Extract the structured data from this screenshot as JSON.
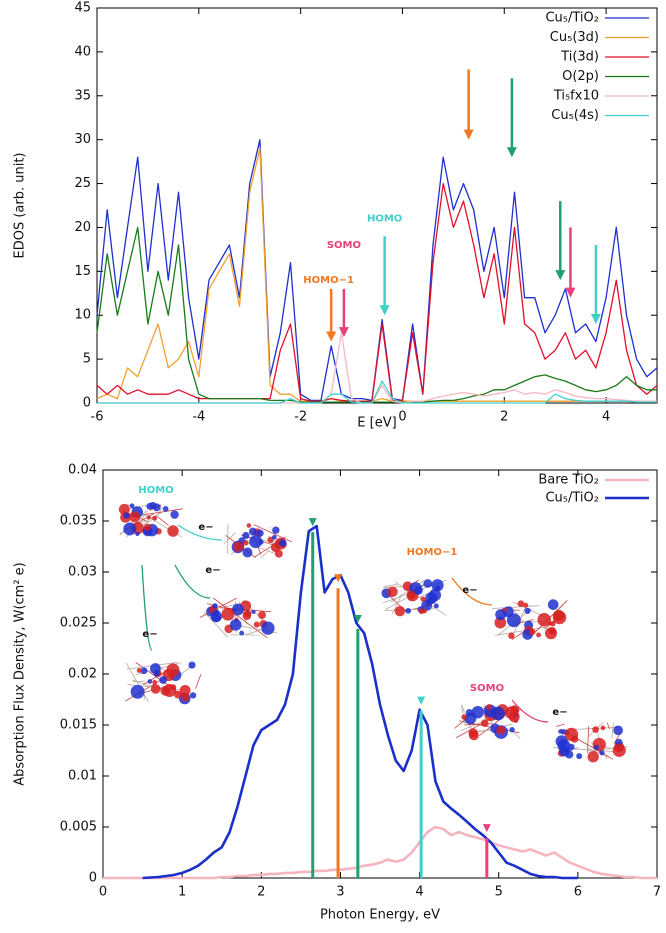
{
  "chart_data": [
    {
      "type": "line",
      "xlabel": "E [eV]",
      "ylabel": "EDOS (arb. unit)",
      "xlim": [
        -6,
        5
      ],
      "xticks": [
        -6,
        -4,
        -2,
        0,
        2,
        4
      ],
      "ylim": [
        0,
        45
      ],
      "yticks": [
        0,
        5,
        10,
        15,
        20,
        25,
        30,
        35,
        40,
        45
      ],
      "legend": "upper right",
      "x": [
        -6,
        -5.8,
        -5.6,
        -5.4,
        -5.2,
        -5,
        -4.8,
        -4.6,
        -4.4,
        -4.2,
        -4,
        -3.8,
        -3.6,
        -3.4,
        -3.2,
        -3,
        -2.8,
        -2.6,
        -2.4,
        -2.2,
        -2,
        -1.8,
        -1.6,
        -1.4,
        -1.2,
        -1,
        -0.8,
        -0.6,
        -0.4,
        -0.2,
        0,
        0.2,
        0.4,
        0.6,
        0.8,
        1,
        1.2,
        1.4,
        1.6,
        1.8,
        2,
        2.2,
        2.4,
        2.6,
        2.8,
        3,
        3.2,
        3.4,
        3.6,
        3.8,
        4,
        4.2,
        4.4,
        4.6,
        4.8,
        5
      ],
      "series": [
        {
          "name": "Cu₅/TiO₂",
          "color": "#1f2fd0",
          "values": [
            10,
            22,
            12,
            20,
            28,
            15,
            25,
            14,
            24,
            12,
            5,
            14,
            16,
            18,
            12,
            25,
            30,
            3,
            8,
            16,
            1,
            0.3,
            0.3,
            6.5,
            1,
            0.5,
            0.5,
            0.3,
            9.5,
            0.5,
            0.3,
            9,
            1,
            18,
            28,
            22,
            25,
            22,
            15,
            20,
            12,
            24,
            12,
            12,
            8,
            10,
            13,
            8,
            9,
            7,
            12,
            20,
            10,
            5,
            3,
            4
          ]
        },
        {
          "name": "Cu₅(3d)",
          "color": "#f0a030",
          "values": [
            0.5,
            1,
            0.5,
            4,
            3,
            6,
            9,
            4,
            5,
            7,
            3,
            13,
            15,
            17,
            11,
            24,
            29,
            2,
            1,
            1,
            0.2,
            0.2,
            0.2,
            0.5,
            0.2,
            0.2,
            0.2,
            0.2,
            0.5,
            0.2,
            0.2,
            0.2,
            0.2,
            0.2,
            0.2,
            0.2,
            0.2,
            0.2,
            0.2,
            0.2,
            0.2,
            0.2,
            0.2,
            0.2,
            0.2,
            0.2,
            0.2,
            0.2,
            0.2,
            0.2,
            0.2,
            0.2,
            0.2,
            0.2,
            0.2,
            0.2
          ]
        },
        {
          "name": "Ti(3d)",
          "color": "#e0102a",
          "values": [
            2,
            1,
            2,
            1,
            1.5,
            1,
            1,
            1,
            1.5,
            1,
            0.5,
            0.5,
            0.5,
            0.5,
            0.5,
            0.5,
            0.5,
            0.5,
            6,
            9,
            0.5,
            0.2,
            0.2,
            0.5,
            0.3,
            0.2,
            0.2,
            0.2,
            9,
            0.3,
            0.3,
            8,
            1,
            16,
            25,
            20,
            23,
            18,
            12,
            17,
            9,
            20,
            9,
            8,
            5,
            6,
            8,
            5,
            6,
            4,
            8,
            14,
            6,
            2,
            1,
            2
          ]
        },
        {
          "name": "O(2p)",
          "color": "#1a7a1a",
          "values": [
            8,
            17,
            10,
            15,
            20,
            9,
            15,
            10,
            18,
            5,
            1,
            0.5,
            0.5,
            0.5,
            0.5,
            0.5,
            0.5,
            0.3,
            0.3,
            0.3,
            0.1,
            0.1,
            0.1,
            0.1,
            0.1,
            0.1,
            0.1,
            0.1,
            0.1,
            0.1,
            0.1,
            0.1,
            0.1,
            0.2,
            0.3,
            0.3,
            0.5,
            0.8,
            1,
            1.5,
            1.5,
            2,
            2.5,
            3,
            3.2,
            2.8,
            2.5,
            2,
            1.5,
            1.3,
            1.5,
            2,
            3,
            2,
            1.5,
            1.5
          ]
        },
        {
          "name": "Ti₅fx10",
          "color": "#f5b8c0",
          "values": [
            0,
            0,
            0,
            0,
            0,
            0,
            0,
            0,
            0,
            0,
            0,
            0,
            0,
            0,
            0,
            0,
            0,
            0,
            0,
            0,
            0,
            0,
            0,
            1,
            8,
            0.5,
            0,
            0,
            2,
            0.2,
            0,
            0.2,
            0.2,
            0.5,
            0.8,
            1,
            1.2,
            1,
            0.8,
            1,
            1.2,
            1.5,
            1,
            1.2,
            1,
            1.5,
            1.2,
            0.8,
            0.6,
            0.5,
            0.5,
            0.4,
            0.3,
            0.2,
            0.2,
            0.2
          ]
        },
        {
          "name": "Cu₅(4s)",
          "color": "#40d0d0",
          "values": [
            0,
            0,
            0,
            0,
            0,
            0,
            0,
            0,
            0,
            0,
            0,
            0,
            0,
            0,
            0,
            0,
            0,
            0,
            0,
            0.5,
            0,
            0,
            0,
            1,
            1,
            0.1,
            0,
            0,
            2.5,
            0.5,
            0,
            0,
            0,
            0,
            0,
            0,
            0,
            0,
            0,
            0,
            0,
            0,
            0,
            0,
            0,
            1,
            0.5,
            0.3,
            0.2,
            0.2,
            0.2,
            0.2,
            0.2,
            0.1,
            0.1,
            0.1
          ]
        }
      ],
      "annotations": [
        {
          "text": "HOMO−1",
          "x": -1.45,
          "y": 14,
          "color": "#f07820"
        },
        {
          "text": "SOMO",
          "x": -1.15,
          "y": 18,
          "color": "#e8407a"
        },
        {
          "text": "HOMO",
          "x": -0.35,
          "y": 21,
          "color": "#40d0c8"
        }
      ],
      "arrows": [
        {
          "x": -1.4,
          "from": 13,
          "to": 7,
          "color": "#f07820"
        },
        {
          "x": -1.15,
          "from": 13,
          "to": 7.5,
          "color": "#e8407a"
        },
        {
          "x": -0.35,
          "from": 19,
          "to": 10,
          "color": "#40d0c8"
        },
        {
          "x": 1.3,
          "from": 38,
          "to": 30,
          "color": "#f07820"
        },
        {
          "x": 2.15,
          "from": 37,
          "to": 28,
          "color": "#20a070"
        },
        {
          "x": 3.1,
          "from": 23,
          "to": 14,
          "color": "#20a070"
        },
        {
          "x": 3.3,
          "from": 20,
          "to": 12,
          "color": "#e8407a"
        },
        {
          "x": 3.8,
          "from": 18,
          "to": 9,
          "color": "#40d0c8"
        }
      ]
    },
    {
      "type": "line",
      "xlabel": "Photon Energy, eV",
      "ylabel": "Absorption Flux Density, W(cm² e)",
      "xlim": [
        0,
        7
      ],
      "xticks": [
        0,
        1,
        2,
        3,
        4,
        5,
        6,
        7
      ],
      "ylim": [
        0,
        0.04
      ],
      "yticks": [
        0,
        0.005,
        0.01,
        0.015,
        0.02,
        0.025,
        0.03,
        0.035,
        0.04
      ],
      "legend": "upper right",
      "x": [
        0,
        0.1,
        0.2,
        0.3,
        0.4,
        0.5,
        0.6,
        0.7,
        0.8,
        0.9,
        1,
        1.1,
        1.2,
        1.3,
        1.4,
        1.5,
        1.6,
        1.7,
        1.8,
        1.9,
        2,
        2.1,
        2.2,
        2.3,
        2.4,
        2.5,
        2.6,
        2.7,
        2.8,
        2.9,
        3,
        3.1,
        3.2,
        3.3,
        3.4,
        3.5,
        3.6,
        3.7,
        3.8,
        3.9,
        4,
        4.1,
        4.2,
        4.3,
        4.4,
        4.5,
        4.6,
        4.7,
        4.8,
        4.9,
        5,
        5.1,
        5.2,
        5.3,
        5.4,
        5.5,
        5.6,
        5.7,
        5.8,
        5.9,
        6,
        6.1,
        6.2,
        6.3,
        6.4,
        6.5,
        6.6,
        6.7,
        6.8,
        6.9,
        7
      ],
      "series": [
        {
          "name": "Bare TiO₂",
          "color": "#f5b5bf",
          "values": [
            0,
            0,
            0,
            0,
            0,
            0,
            0,
            0,
            0,
            0,
            0,
            0,
            0,
            0,
            0,
            0.0001,
            0.0001,
            0.0002,
            0.0002,
            0.0003,
            0.0003,
            0.0004,
            0.0004,
            0.0005,
            0.0005,
            0.0006,
            0.0006,
            0.0007,
            0.0007,
            0.0008,
            0.0008,
            0.0009,
            0.001,
            0.0012,
            0.0013,
            0.0015,
            0.0018,
            0.0016,
            0.0018,
            0.0025,
            0.0035,
            0.0045,
            0.005,
            0.0048,
            0.0042,
            0.0045,
            0.0042,
            0.004,
            0.0038,
            0.0035,
            0.0032,
            0.003,
            0.0028,
            0.0026,
            0.0028,
            0.0025,
            0.0022,
            0.0025,
            0.002,
            0.0015,
            0.0012,
            0.0009,
            0.0006,
            0.0004,
            0.0003,
            0.0002,
            0.0001,
            0.0001,
            0,
            0,
            0
          ]
        },
        {
          "name": "Cu₅/TiO₂",
          "color": "#1a30c8",
          "values": [
            null,
            null,
            null,
            null,
            null,
            0,
            5e-05,
            0.0001,
            0.0002,
            0.0003,
            0.0005,
            0.0008,
            0.0012,
            0.0018,
            0.0025,
            0.003,
            0.0045,
            0.007,
            0.01,
            0.013,
            0.0145,
            0.015,
            0.0155,
            0.017,
            0.02,
            0.028,
            0.034,
            0.0345,
            0.028,
            0.0293,
            0.0297,
            0.028,
            0.025,
            0.024,
            0.021,
            0.017,
            0.014,
            0.0115,
            0.0105,
            0.0125,
            0.0165,
            0.015,
            0.0095,
            0.0075,
            0.0068,
            0.0062,
            0.0055,
            0.0048,
            0.0042,
            0.0035,
            0.0025,
            0.0015,
            0.0012,
            0.0008,
            0.0004,
            0.0002,
            0.0001,
            0.0001,
            0,
            0,
            0,
            null,
            null,
            null,
            null,
            null,
            null,
            null,
            null,
            null,
            null
          ]
        }
      ],
      "lines": [
        {
          "x": 2.65,
          "value": 0.0345,
          "color": "#20a070"
        },
        {
          "x": 2.97,
          "value": 0.029,
          "color": "#f07820"
        },
        {
          "x": 3.22,
          "value": 0.025,
          "color": "#20a070"
        },
        {
          "x": 4.02,
          "value": 0.017,
          "color": "#40d0c8"
        },
        {
          "x": 4.85,
          "value": 0.0045,
          "color": "#e8407a"
        }
      ],
      "annotations": [
        {
          "text": "HOMO",
          "color": "#40d0c8"
        },
        {
          "text": "e−",
          "color": "#111"
        },
        {
          "text": "e−",
          "color": "#111"
        },
        {
          "text": "e−",
          "color": "#111"
        },
        {
          "text": "HOMO−1",
          "color": "#f07820"
        },
        {
          "text": "e−",
          "color": "#111"
        },
        {
          "text": "SOMO",
          "color": "#e8407a"
        },
        {
          "text": "e−",
          "color": "#111"
        }
      ]
    }
  ]
}
